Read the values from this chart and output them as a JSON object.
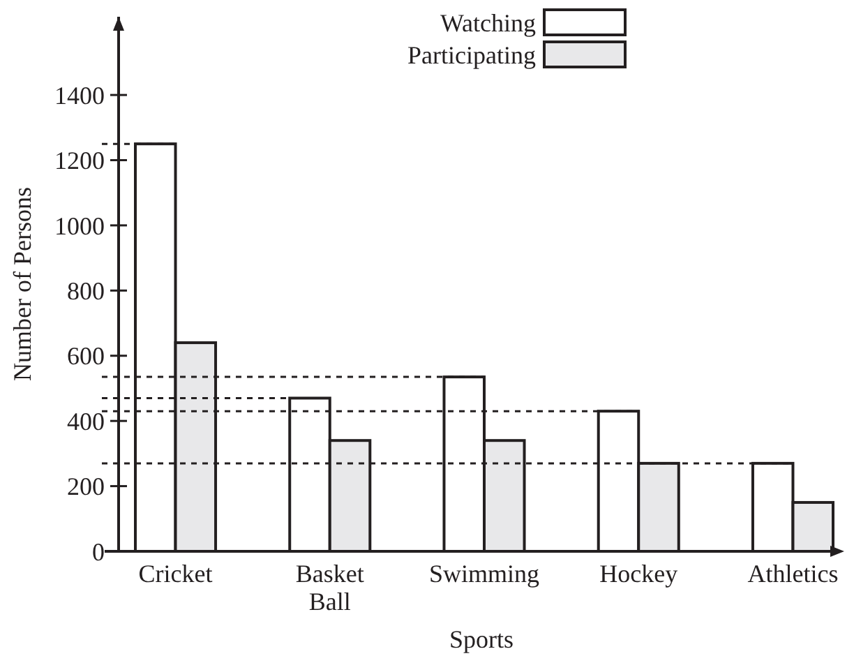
{
  "chart_data": {
    "type": "bar",
    "xlabel": "Sports",
    "ylabel": "Number of Persons",
    "categories": [
      "Cricket",
      "Basket Ball",
      "Swimming",
      "Hockey",
      "Athletics"
    ],
    "series": [
      {
        "name": "Watching",
        "color": "#ffffff",
        "values": [
          1250,
          470,
          535,
          430,
          270
        ]
      },
      {
        "name": "Participating",
        "color": "#e8e8ea",
        "values": [
          640,
          340,
          340,
          270,
          150
        ]
      }
    ],
    "ylim": [
      0,
      1640
    ],
    "yticks": [
      0,
      200,
      400,
      600,
      800,
      1000,
      1200,
      1400
    ],
    "grid": false,
    "legend": "top right",
    "ref_lines": [
      {
        "axis": "y",
        "value": 1250,
        "line_style": "dashed"
      },
      {
        "axis": "y",
        "value": 535,
        "line_style": "dashed"
      },
      {
        "axis": "y",
        "value": 470,
        "line_style": "dashed"
      },
      {
        "axis": "y",
        "value": 430,
        "line_style": "dashed"
      },
      {
        "axis": "y",
        "value": 270,
        "line_style": "dashed"
      }
    ]
  }
}
